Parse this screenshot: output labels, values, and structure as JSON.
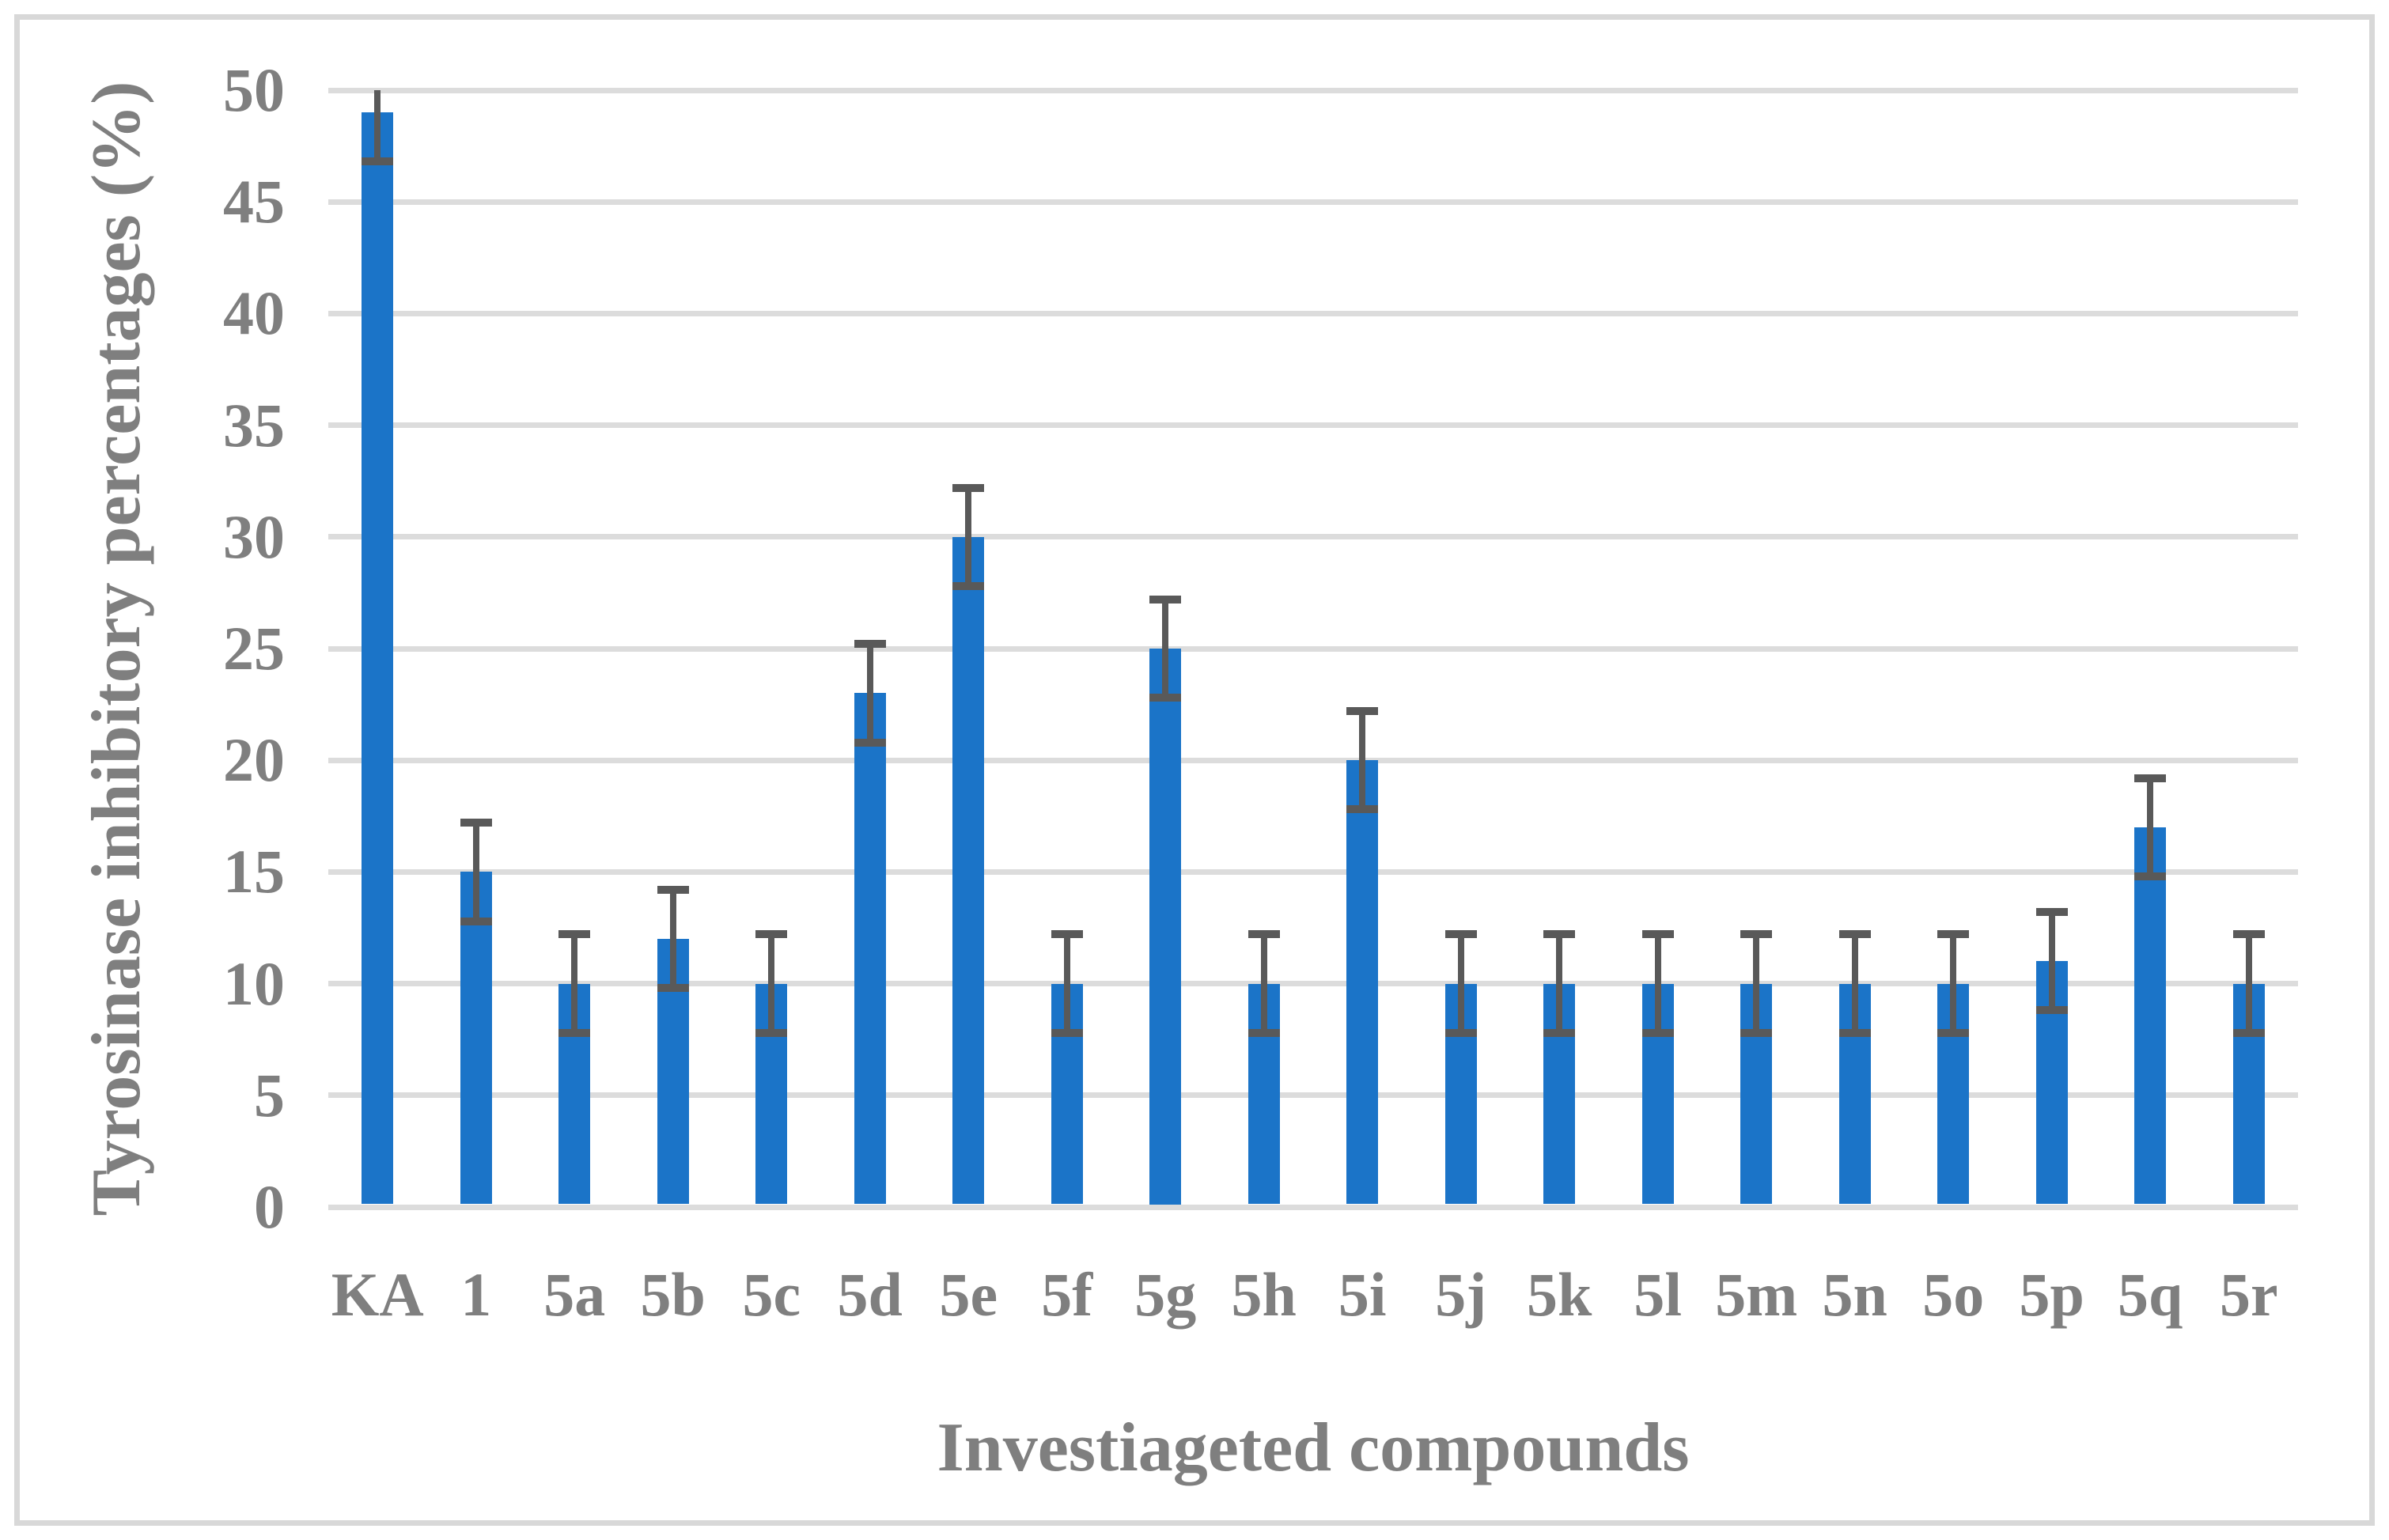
{
  "figure": {
    "background_color": "#ffffff",
    "border_color": "#d8d8d8"
  },
  "chart_data": {
    "type": "bar",
    "title": "",
    "xlabel": "Investiageted compounds",
    "ylabel": "Tyrosinase inhibitory percentages (%)",
    "categories": [
      "KA",
      "1",
      "5a",
      "5b",
      "5c",
      "5d",
      "5e",
      "5f",
      "5g",
      "5h",
      "5i",
      "5j",
      "5k",
      "5l",
      "5m",
      "5n",
      "5o",
      "5p",
      "5q",
      "5r"
    ],
    "values": [
      49,
      15,
      10,
      12,
      10,
      23,
      30,
      10,
      25,
      10,
      20,
      10,
      10,
      10,
      10,
      10,
      10,
      11,
      17,
      10
    ],
    "error_bars": {
      "symmetric_value": 2.2,
      "clipped_at_axis_max": true
    },
    "ylim": [
      0,
      50
    ],
    "yticks": [
      0,
      5,
      10,
      15,
      20,
      25,
      30,
      35,
      40,
      45,
      50
    ],
    "grid": "horizontal",
    "legend": "none",
    "colors": {
      "bar": "#1b74c8",
      "error_bar": "#595959",
      "gridline": "#dcdcdc",
      "axis_line": "#dcdcdc",
      "text": "#7f7f7f"
    }
  }
}
